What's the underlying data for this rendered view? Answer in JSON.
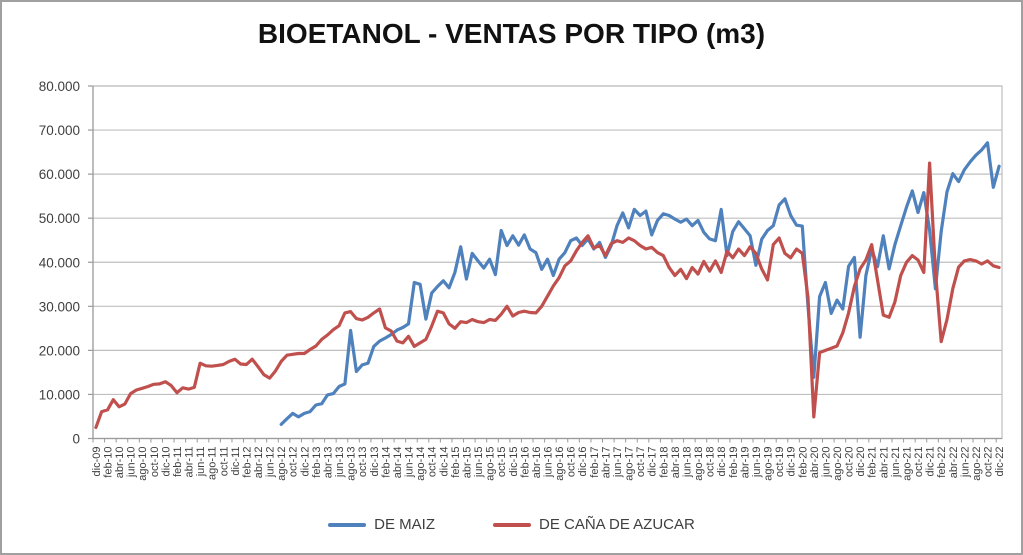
{
  "chart_data": {
    "type": "line",
    "title": "BIOETANOL - VENTAS POR TIPO (m3)",
    "xlabel": "",
    "ylabel": "",
    "ylim": [
      0,
      80000
    ],
    "grid": true,
    "legend_position": "bottom",
    "y_tick_labels": [
      "0",
      "10.000",
      "20.000",
      "30.000",
      "40.000",
      "50.000",
      "60.000",
      "70.000",
      "80.000"
    ],
    "x_months_total": 157,
    "x_tick_labels": [
      "dic-09",
      "feb-10",
      "abr-10",
      "jun-10",
      "ago-10",
      "oct-10",
      "dic-10",
      "feb-11",
      "abr-11",
      "jun-11",
      "ago-11",
      "oct-11",
      "dic-11",
      "feb-12",
      "abr-12",
      "jun-12",
      "ago-12",
      "oct-12",
      "dic-12",
      "feb-13",
      "abr-13",
      "jun-13",
      "ago-13",
      "oct-13",
      "dic-13",
      "feb-14",
      "abr-14",
      "jun-14",
      "ago-14",
      "oct-14",
      "dic-14",
      "feb-15",
      "abr-15",
      "jun-15",
      "ago-15",
      "oct-15",
      "dic-15",
      "feb-16",
      "abr-16",
      "jun-16",
      "ago-16",
      "oct-16",
      "dic-16",
      "feb-17",
      "abr-17",
      "jun-17",
      "ago-17",
      "oct-17",
      "dic-17",
      "feb-18",
      "abr-18",
      "jun-18",
      "ago-18",
      "oct-18",
      "dic-18",
      "feb-19",
      "abr-19",
      "jun-19",
      "ago-19",
      "oct-19",
      "dic-19",
      "feb-20",
      "abr-20",
      "jun-20",
      "ago-20",
      "oct-20",
      "dic-20",
      "feb-21",
      "abr-21",
      "jun-21",
      "ago-21",
      "oct-21",
      "dic-21",
      "feb-22",
      "abr-22",
      "jun-22",
      "ago-22",
      "oct-22",
      "dic-22"
    ],
    "series": [
      {
        "name": "DE MAIZ",
        "color": "#4F81BD",
        "start_index": 32,
        "values": [
          3200,
          4500,
          5700,
          4900,
          5700,
          6100,
          7600,
          7900,
          9900,
          10200,
          11800,
          12400,
          24500,
          15200,
          16700,
          17100,
          20900,
          22100,
          22800,
          23600,
          24600,
          25200,
          26000,
          35400,
          35000,
          27100,
          33000,
          34500,
          35800,
          34200,
          37700,
          43500,
          36200,
          42000,
          40300,
          38700,
          40700,
          37200,
          47200,
          43800,
          46000,
          43900,
          46200,
          43000,
          42200,
          38400,
          40700,
          37000,
          40700,
          42200,
          44900,
          45500,
          43800,
          45300,
          43000,
          44500,
          41100,
          43800,
          48300,
          51200,
          47800,
          52000,
          50600,
          51600,
          46200,
          49500,
          51000,
          50600,
          49800,
          49100,
          49800,
          48300,
          49500,
          46800,
          45300,
          44900,
          52000,
          41500,
          47000,
          49200,
          47600,
          46000,
          39300,
          45200,
          47200,
          48300,
          53000,
          54400,
          50600,
          48400,
          48200,
          30000,
          13900,
          32200,
          35400,
          28400,
          31400,
          29400,
          39100,
          41100,
          23000,
          37000,
          43000,
          39000,
          46000,
          38500,
          44000,
          48300,
          52500,
          56200,
          51300,
          55800,
          47300,
          34000,
          47000,
          56000,
          60100,
          58300,
          61000,
          62800,
          64300,
          65500,
          67100,
          57000,
          61800
        ]
      },
      {
        "name": "DE CAÑA DE AZUCAR",
        "color": "#C0504D",
        "start_index": 0,
        "values": [
          2500,
          6100,
          6500,
          8800,
          7200,
          7800,
          10200,
          11000,
          11400,
          11800,
          12300,
          12400,
          12900,
          12000,
          10400,
          11500,
          11200,
          11600,
          17100,
          16500,
          16400,
          16600,
          16800,
          17500,
          18000,
          16900,
          16800,
          18000,
          16300,
          14500,
          13700,
          15300,
          17500,
          18900,
          19100,
          19300,
          19300,
          20200,
          21000,
          22500,
          23500,
          24700,
          25600,
          28500,
          28800,
          27200,
          26900,
          27500,
          28500,
          29400,
          25100,
          24400,
          22100,
          21700,
          23200,
          20900,
          21700,
          22500,
          25500,
          28900,
          28500,
          26000,
          25000,
          26500,
          26300,
          27000,
          26500,
          26300,
          27000,
          26800,
          28200,
          30000,
          27800,
          28600,
          28900,
          28600,
          28500,
          30000,
          32300,
          34600,
          36500,
          39200,
          40300,
          42600,
          44500,
          46000,
          43200,
          43800,
          41500,
          44200,
          44900,
          44500,
          45500,
          44900,
          43800,
          43000,
          43400,
          42200,
          41500,
          38800,
          37000,
          38400,
          36300,
          38800,
          37300,
          40200,
          38000,
          40300,
          37700,
          42500,
          41000,
          43000,
          41500,
          43500,
          42000,
          38500,
          36000,
          44000,
          45500,
          42000,
          41000,
          43000,
          42000,
          32000,
          4900,
          19500,
          20000,
          20500,
          21000,
          24000,
          28500,
          34500,
          38500,
          40500,
          44000,
          36000,
          28000,
          27500,
          31000,
          37000,
          40000,
          41500,
          40500,
          37700,
          62500,
          38000,
          22000,
          27000,
          34000,
          38900,
          40300,
          40600,
          40300,
          39600,
          40300,
          39200,
          38800
        ]
      }
    ]
  }
}
